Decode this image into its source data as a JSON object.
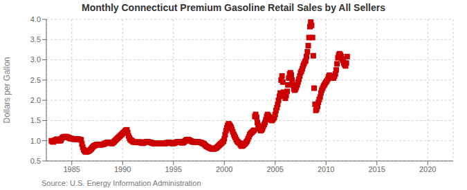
{
  "chart_data": {
    "type": "scatter",
    "title": "Monthly Connecticut Premium Gasoline Retail Sales by All Sellers",
    "y_label": "Dollars per Gallon",
    "annotations": [
      "Source: U.S. Energy Information Administration"
    ],
    "color": "#CC0000",
    "marker": "square",
    "grid": true,
    "xlim": [
      1982.5,
      2022.5
    ],
    "xticks": [
      1985,
      1990,
      1995,
      2000,
      2005,
      2010,
      2015,
      2020
    ],
    "ylim": [
      0.5,
      4.0
    ],
    "yticks": [
      0.5,
      {
        "value": 1.0,
        "label": "1.0"
      },
      1.5,
      {
        "value": 2.0,
        "label": "2.0"
      },
      2.5,
      {
        "value": 3.0,
        "label": "3.0"
      },
      3.5,
      {
        "value": 4.0,
        "label": "4.0"
      }
    ],
    "x": [
      1983.0,
      1983.08,
      1983.17,
      1983.25,
      1983.33,
      1983.42,
      1983.5,
      1983.58,
      1983.67,
      1983.75,
      1983.83,
      1983.92,
      1984.0,
      1984.08,
      1984.17,
      1984.25,
      1984.33,
      1984.42,
      1984.5,
      1984.58,
      1984.67,
      1984.75,
      1984.83,
      1984.92,
      1985.0,
      1985.08,
      1985.17,
      1985.25,
      1985.33,
      1985.42,
      1985.5,
      1985.58,
      1985.67,
      1985.75,
      1985.83,
      1985.92,
      1986.0,
      1986.08,
      1986.17,
      1986.25,
      1986.33,
      1986.42,
      1986.5,
      1986.58,
      1986.67,
      1986.75,
      1986.83,
      1986.92,
      1987.0,
      1987.08,
      1987.17,
      1987.25,
      1987.33,
      1987.42,
      1987.5,
      1987.58,
      1987.67,
      1987.75,
      1987.83,
      1987.92,
      1988.0,
      1988.08,
      1988.17,
      1988.25,
      1988.33,
      1988.42,
      1988.5,
      1988.58,
      1988.67,
      1988.75,
      1988.83,
      1988.92,
      1989.0,
      1989.08,
      1989.17,
      1989.25,
      1989.33,
      1989.42,
      1989.5,
      1989.58,
      1989.67,
      1989.75,
      1989.83,
      1989.92,
      1990.0,
      1990.08,
      1990.17,
      1990.25,
      1990.33,
      1990.42,
      1990.5,
      1990.58,
      1990.67,
      1990.75,
      1990.83,
      1990.92,
      1991.0,
      1991.08,
      1991.17,
      1991.25,
      1991.33,
      1991.42,
      1991.5,
      1991.58,
      1991.67,
      1991.75,
      1991.83,
      1991.92,
      1992.0,
      1992.08,
      1992.17,
      1992.25,
      1992.33,
      1992.42,
      1992.5,
      1992.58,
      1992.67,
      1992.75,
      1992.83,
      1992.92,
      1993.0,
      1993.08,
      1993.17,
      1993.25,
      1993.33,
      1993.42,
      1993.5,
      1993.58,
      1993.67,
      1993.75,
      1993.83,
      1993.92,
      1994.0,
      1994.08,
      1994.17,
      1994.25,
      1994.33,
      1994.42,
      1994.5,
      1994.58,
      1994.67,
      1994.75,
      1994.83,
      1994.92,
      1995.0,
      1995.08,
      1995.17,
      1995.25,
      1995.33,
      1995.42,
      1995.5,
      1995.58,
      1995.67,
      1995.75,
      1995.83,
      1995.92,
      1996.0,
      1996.08,
      1996.17,
      1996.25,
      1996.33,
      1996.42,
      1996.5,
      1996.58,
      1996.67,
      1996.75,
      1996.83,
      1996.92,
      1997.0,
      1997.08,
      1997.17,
      1997.25,
      1997.33,
      1997.42,
      1997.5,
      1997.58,
      1997.67,
      1997.75,
      1997.83,
      1997.92,
      1998.0,
      1998.08,
      1998.17,
      1998.25,
      1998.33,
      1998.42,
      1998.5,
      1998.58,
      1998.67,
      1998.75,
      1998.83,
      1998.92,
      1999.0,
      1999.08,
      1999.17,
      1999.25,
      1999.33,
      1999.42,
      1999.5,
      1999.58,
      1999.67,
      1999.75,
      1999.83,
      1999.92,
      2000.0,
      2000.08,
      2000.17,
      2000.25,
      2000.33,
      2000.42,
      2000.5,
      2000.58,
      2000.67,
      2000.75,
      2000.83,
      2000.92,
      2001.0,
      2001.08,
      2001.17,
      2001.25,
      2001.33,
      2001.42,
      2001.5,
      2001.58,
      2001.67,
      2001.75,
      2001.83,
      2001.92,
      2002.0,
      2002.08,
      2002.17,
      2002.25,
      2002.33,
      2002.42,
      2002.5,
      2002.58,
      2002.67,
      2002.75,
      2002.83,
      2002.92,
      2003.0,
      2003.08,
      2003.17,
      2003.25,
      2003.33,
      2003.42,
      2003.5,
      2003.58,
      2003.67,
      2003.75,
      2003.83,
      2003.92,
      2004.0,
      2004.08,
      2004.17,
      2004.25,
      2004.33,
      2004.42,
      2004.5,
      2004.58,
      2004.67,
      2004.75,
      2004.83,
      2004.92,
      2005.0,
      2005.08,
      2005.17,
      2005.25,
      2005.33,
      2005.42,
      2005.5,
      2005.58,
      2005.67,
      2005.75,
      2005.83,
      2005.92,
      2006.0,
      2006.08,
      2006.17,
      2006.25,
      2006.33,
      2006.42,
      2006.5,
      2006.58,
      2006.67,
      2006.75,
      2006.83,
      2006.92,
      2007.0,
      2007.08,
      2007.17,
      2007.25,
      2007.33,
      2007.42,
      2007.5,
      2007.58,
      2007.67,
      2007.75,
      2007.83,
      2007.92,
      2008.0,
      2008.08,
      2008.17,
      2008.25,
      2008.33,
      2008.42,
      2008.5,
      2008.58,
      2008.67,
      2008.75,
      2008.83,
      2008.92,
      2009.0,
      2009.08,
      2009.17,
      2009.25,
      2009.33,
      2009.42,
      2009.5,
      2009.58,
      2009.67,
      2009.75,
      2009.83,
      2009.92,
      2010.0,
      2010.08,
      2010.17,
      2010.25,
      2010.33,
      2010.42,
      2010.5,
      2010.58,
      2010.67,
      2010.75,
      2010.83,
      2010.92,
      2011.0,
      2011.08,
      2011.17,
      2011.25,
      2011.33,
      2011.42,
      2011.5,
      2011.58,
      2011.67,
      2011.75,
      2011.83,
      2011.92,
      2012.0,
      2012.08
    ],
    "values": [
      1.0,
      0.98,
      0.97,
      0.99,
      1.01,
      1.02,
      1.03,
      1.04,
      1.02,
      1.0,
      1.0,
      1.01,
      1.05,
      1.08,
      1.09,
      1.1,
      1.1,
      1.1,
      1.1,
      1.09,
      1.08,
      1.07,
      1.06,
      1.05,
      1.05,
      1.05,
      1.04,
      1.04,
      1.04,
      1.04,
      1.04,
      1.04,
      1.04,
      1.03,
      1.03,
      1.02,
      0.92,
      0.84,
      0.78,
      0.75,
      0.73,
      0.72,
      0.73,
      0.74,
      0.75,
      0.76,
      0.78,
      0.8,
      0.83,
      0.85,
      0.87,
      0.88,
      0.89,
      0.9,
      0.91,
      0.91,
      0.91,
      0.9,
      0.9,
      0.9,
      0.91,
      0.91,
      0.92,
      0.93,
      0.94,
      0.95,
      0.96,
      0.96,
      0.96,
      0.95,
      0.94,
      0.93,
      0.94,
      0.96,
      0.98,
      1.0,
      1.02,
      1.04,
      1.06,
      1.08,
      1.1,
      1.12,
      1.14,
      1.16,
      1.18,
      1.2,
      1.22,
      1.24,
      1.26,
      1.27,
      1.2,
      1.12,
      1.07,
      1.03,
      1.01,
      1.0,
      0.98,
      0.97,
      0.97,
      0.96,
      0.96,
      0.96,
      0.96,
      0.97,
      0.97,
      0.96,
      0.95,
      0.94,
      0.94,
      0.95,
      0.96,
      0.97,
      0.97,
      0.97,
      0.97,
      0.97,
      0.96,
      0.96,
      0.95,
      0.94,
      0.94,
      0.93,
      0.93,
      0.93,
      0.93,
      0.93,
      0.94,
      0.94,
      0.94,
      0.94,
      0.93,
      0.93,
      0.93,
      0.93,
      0.93,
      0.94,
      0.95,
      0.95,
      0.95,
      0.96,
      0.95,
      0.94,
      0.94,
      0.93,
      0.94,
      0.94,
      0.95,
      0.96,
      0.97,
      0.97,
      0.97,
      0.97,
      0.97,
      0.96,
      0.95,
      0.95,
      0.96,
      0.98,
      1.0,
      1.02,
      1.03,
      1.03,
      1.02,
      1.01,
      1.0,
      0.99,
      0.98,
      0.97,
      0.97,
      0.97,
      0.97,
      0.97,
      0.97,
      0.97,
      0.97,
      0.96,
      0.96,
      0.95,
      0.94,
      0.93,
      0.92,
      0.9,
      0.88,
      0.86,
      0.85,
      0.84,
      0.83,
      0.82,
      0.81,
      0.8,
      0.8,
      0.8,
      0.8,
      0.81,
      0.82,
      0.83,
      0.85,
      0.87,
      0.89,
      0.91,
      0.93,
      0.95,
      0.97,
      0.99,
      1.05,
      1.15,
      1.25,
      1.32,
      1.38,
      1.42,
      1.4,
      1.37,
      1.33,
      1.28,
      1.22,
      1.16,
      1.12,
      1.08,
      1.03,
      0.99,
      0.97,
      0.95,
      0.94,
      0.9,
      0.87,
      0.87,
      0.88,
      0.9,
      0.92,
      0.94,
      0.97,
      1.0,
      1.05,
      1.1,
      1.15,
      1.18,
      1.2,
      1.22,
      1.24,
      1.26,
      1.6,
      1.65,
      1.58,
      1.45,
      1.38,
      1.3,
      1.28,
      1.25,
      1.27,
      1.3,
      1.35,
      1.4,
      1.45,
      1.52,
      1.6,
      1.65,
      1.62,
      1.58,
      1.55,
      1.52,
      1.5,
      1.52,
      1.55,
      1.58,
      1.65,
      1.75,
      1.82,
      1.9,
      2.0,
      2.1,
      2.18,
      2.5,
      2.6,
      2.45,
      2.2,
      2.1,
      2.05,
      2.12,
      2.22,
      2.38,
      2.55,
      2.65,
      2.68,
      2.62,
      2.5,
      2.38,
      2.28,
      2.25,
      2.28,
      2.32,
      2.38,
      2.45,
      2.52,
      2.6,
      2.68,
      2.72,
      2.78,
      2.85,
      2.9,
      2.95,
      2.98,
      3.08,
      3.2,
      3.35,
      3.55,
      3.82,
      3.95,
      3.85,
      3.55,
      3.1,
      2.3,
      1.9,
      1.75,
      1.78,
      1.85,
      1.95,
      2.02,
      2.08,
      2.18,
      2.25,
      2.3,
      2.35,
      2.38,
      2.42,
      2.45,
      2.48,
      2.52,
      2.58,
      2.62,
      2.6,
      2.58,
      2.55,
      2.55,
      2.55,
      2.6,
      2.65,
      2.75,
      2.9,
      3.05,
      3.12,
      3.15,
      3.12,
      3.08,
      3.02,
      2.98,
      2.92,
      2.88,
      2.85,
      2.92,
      3.08
    ]
  }
}
